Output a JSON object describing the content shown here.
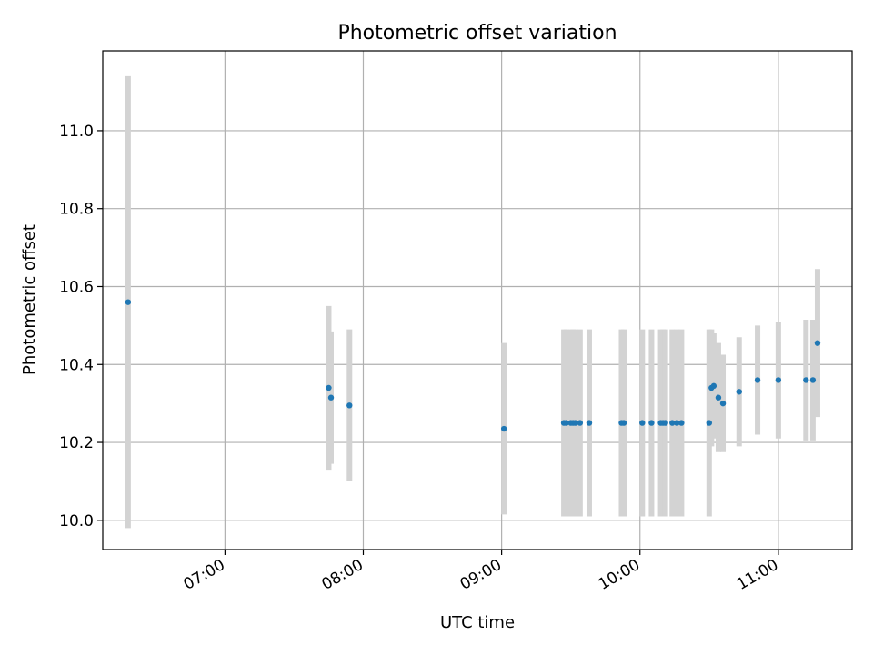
{
  "chart_data": {
    "type": "scatter",
    "title": "Photometric offset variation",
    "xlabel": "UTC time",
    "ylabel": "Photometric offset",
    "xlim": [
      "06:07",
      "11:32"
    ],
    "ylim": [
      9.925,
      11.205
    ],
    "x_ticks": [
      "07:00",
      "08:00",
      "09:00",
      "10:00",
      "11:00"
    ],
    "y_ticks": [
      "10.0",
      "10.2",
      "10.4",
      "10.6",
      "10.8",
      "11.0"
    ],
    "grid": true,
    "marker_color": "#1f77b4",
    "errorbar_color": "#d3d3d3",
    "points": [
      {
        "time": "06:18",
        "y": 10.56,
        "err": 0.58
      },
      {
        "time": "07:45",
        "y": 10.34,
        "err": 0.21
      },
      {
        "time": "07:46",
        "y": 10.315,
        "err": 0.17
      },
      {
        "time": "07:54",
        "y": 10.295,
        "err": 0.195
      },
      {
        "time": "09:01",
        "y": 10.235,
        "err": 0.22
      },
      {
        "time": "09:27",
        "y": 10.25,
        "err": 0.24
      },
      {
        "time": "09:28",
        "y": 10.25,
        "err": 0.24
      },
      {
        "time": "09:30",
        "y": 10.25,
        "err": 0.24
      },
      {
        "time": "09:31",
        "y": 10.25,
        "err": 0.24
      },
      {
        "time": "09:32",
        "y": 10.25,
        "err": 0.24
      },
      {
        "time": "09:34",
        "y": 10.25,
        "err": 0.24
      },
      {
        "time": "09:38",
        "y": 10.25,
        "err": 0.24
      },
      {
        "time": "09:52",
        "y": 10.25,
        "err": 0.24
      },
      {
        "time": "09:53",
        "y": 10.25,
        "err": 0.24
      },
      {
        "time": "10:01",
        "y": 10.25,
        "err": 0.24
      },
      {
        "time": "10:05",
        "y": 10.25,
        "err": 0.24
      },
      {
        "time": "10:09",
        "y": 10.25,
        "err": 0.24
      },
      {
        "time": "10:10",
        "y": 10.25,
        "err": 0.24
      },
      {
        "time": "10:11",
        "y": 10.25,
        "err": 0.24
      },
      {
        "time": "10:14",
        "y": 10.25,
        "err": 0.24
      },
      {
        "time": "10:16",
        "y": 10.25,
        "err": 0.24
      },
      {
        "time": "10:18",
        "y": 10.25,
        "err": 0.24
      },
      {
        "time": "10:30",
        "y": 10.25,
        "err": 0.24
      },
      {
        "time": "10:31",
        "y": 10.34,
        "err": 0.15
      },
      {
        "time": "10:32",
        "y": 10.345,
        "err": 0.135
      },
      {
        "time": "10:34",
        "y": 10.315,
        "err": 0.14
      },
      {
        "time": "10:36",
        "y": 10.3,
        "err": 0.125
      },
      {
        "time": "10:43",
        "y": 10.33,
        "err": 0.14
      },
      {
        "time": "10:51",
        "y": 10.36,
        "err": 0.14
      },
      {
        "time": "11:00",
        "y": 10.36,
        "err": 0.15
      },
      {
        "time": "11:12",
        "y": 10.36,
        "err": 0.155
      },
      {
        "time": "11:15",
        "y": 10.36,
        "err": 0.155
      },
      {
        "time": "11:17",
        "y": 10.455,
        "err": 0.19
      }
    ]
  }
}
